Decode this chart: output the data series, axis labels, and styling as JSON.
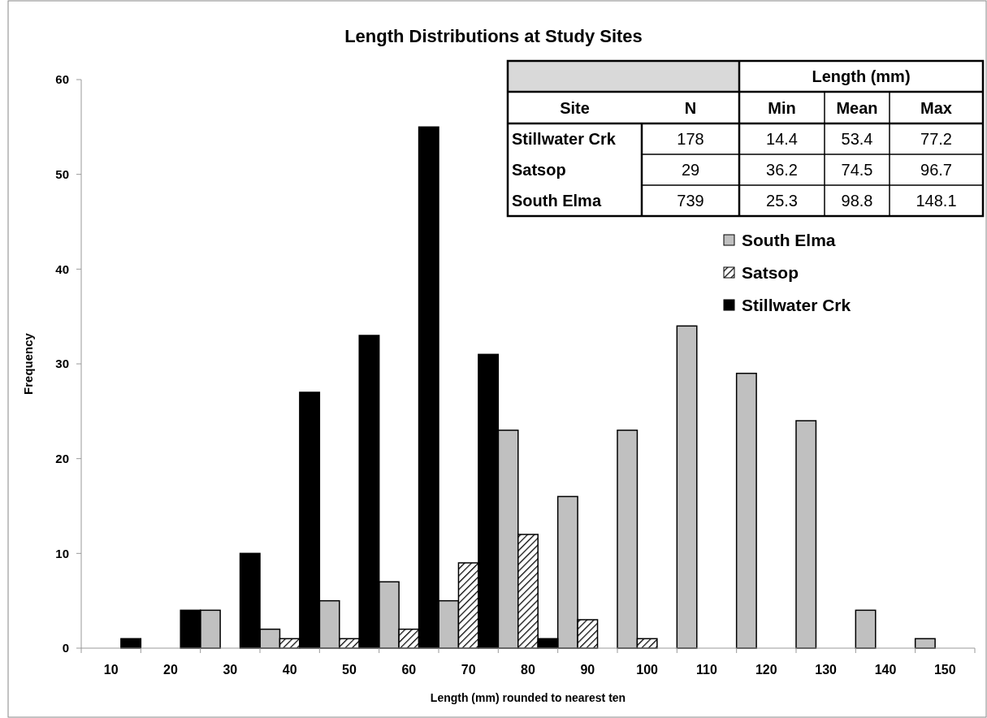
{
  "chart_data": [
    {
      "type": "bar",
      "title": "Length Distributions at Study Sites",
      "xlabel": "Length (mm) rounded to nearest ten",
      "ylabel": "Frequency",
      "categories": [
        "10",
        "20",
        "30",
        "40",
        "50",
        "60",
        "70",
        "80",
        "90",
        "100",
        "110",
        "120",
        "130",
        "140",
        "150"
      ],
      "series": [
        {
          "name": "South Elma",
          "color": "#c0c0c0",
          "values": [
            0,
            0,
            4,
            2,
            5,
            7,
            5,
            23,
            16,
            23,
            34,
            29,
            24,
            4,
            1
          ]
        },
        {
          "name": "Satsop",
          "color": "#000000",
          "values": [
            0,
            0,
            0,
            1,
            1,
            2,
            9,
            12,
            3,
            1,
            0,
            0,
            0,
            0,
            0
          ]
        },
        {
          "name": "Stillwater Crk",
          "color": "#000000",
          "values": [
            1,
            4,
            10,
            27,
            33,
            55,
            31,
            1,
            0,
            0,
            0,
            0,
            0,
            0,
            0
          ]
        }
      ],
      "ylim": [
        0,
        60
      ],
      "yticks": [
        0,
        10,
        20,
        30,
        40,
        50,
        60
      ],
      "grid": false,
      "legend": "top right"
    },
    {
      "type": "other",
      "title": "Length (mm)",
      "categories": [
        "Site",
        "N",
        "Min",
        "Mean",
        "Max"
      ],
      "y_categories": [
        "Stillwater Crk",
        "Satsop",
        "South Elma"
      ],
      "cell_labels": [
        [
          "178",
          "14.4",
          "53.4",
          "77.2"
        ],
        [
          "29",
          "36.2",
          "74.5",
          "96.7"
        ],
        [
          "739",
          "25.3",
          "98.8",
          "148.1"
        ]
      ]
    }
  ]
}
